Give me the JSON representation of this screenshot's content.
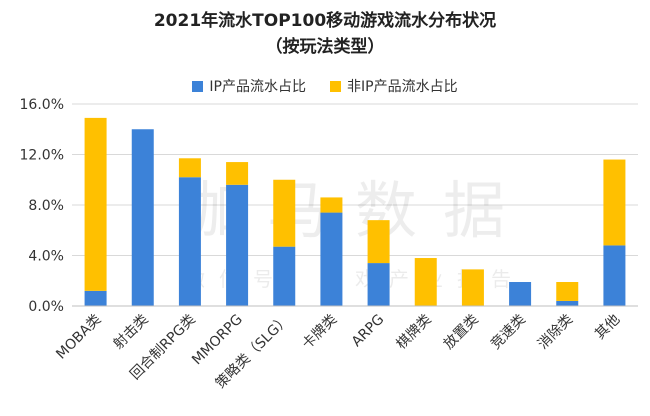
{
  "colors": {
    "ip": "#3C82D8",
    "non_ip": "#FFC000",
    "grid": "#D9D9D9",
    "axis": "#BFBFBF"
  },
  "watermark": {
    "main": "伽马数据",
    "sub": "微信号：游戏产业报告"
  },
  "chart_data": {
    "type": "bar",
    "stacked": true,
    "title": "2021年流水TOP100移动游戏流水分布状况",
    "subtitle": "（按玩法类型）",
    "categories": [
      "MOBA类",
      "射击类",
      "回合制RPG类",
      "MMORPG",
      "策略类（SLG）",
      "卡牌类",
      "ARPG",
      "棋牌类",
      "放置类",
      "竞速类",
      "消除类",
      "其他"
    ],
    "series": [
      {
        "name": "IP产品流水占比",
        "values": [
          1.2,
          14.0,
          10.2,
          9.6,
          4.7,
          7.4,
          3.4,
          0.0,
          0.0,
          1.9,
          0.4,
          4.8
        ]
      },
      {
        "name": "非IP产品流水占比",
        "values": [
          13.7,
          0.0,
          1.5,
          1.8,
          5.3,
          1.2,
          3.4,
          3.8,
          2.9,
          0.0,
          1.5,
          6.8
        ]
      }
    ],
    "ylim": [
      0,
      16
    ],
    "yticks": [
      "0.0%",
      "4.0%",
      "8.0%",
      "12.0%",
      "16.0%"
    ],
    "ytick_values": [
      0,
      4,
      8,
      12,
      16
    ],
    "legend_position": "top-center",
    "grid": true
  }
}
